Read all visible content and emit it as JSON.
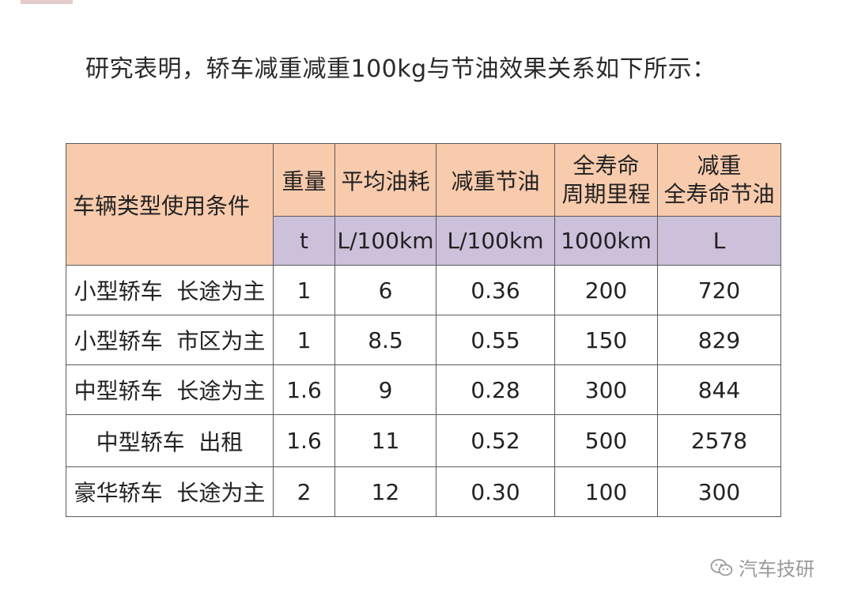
{
  "heading": "研究表明，轿车减重减重100kg与节油效果关系如下所示：",
  "table": {
    "headers": {
      "type": "车辆类型使用条件",
      "weight": "重量",
      "avg_fuel": "平均油耗",
      "saving": "减重节油",
      "mileage_line1": "全寿命",
      "mileage_line2": "周期里程",
      "lifetime_line1": "减重",
      "lifetime_line2": "全寿命节油"
    },
    "units": {
      "weight": "t",
      "avg_fuel": "L/100km",
      "saving": "L/100km",
      "mileage": "1000km",
      "lifetime": "L"
    },
    "rows": [
      {
        "type": "小型轿车  长途为主",
        "weight": "1",
        "avg_fuel": "6",
        "saving": "0.36",
        "mileage": "200",
        "lifetime": "720"
      },
      {
        "type": "小型轿车  市区为主",
        "weight": "1",
        "avg_fuel": "8.5",
        "saving": "0.55",
        "mileage": "150",
        "lifetime": "829"
      },
      {
        "type": "中型轿车  长途为主",
        "weight": "1.6",
        "avg_fuel": "9",
        "saving": "0.28",
        "mileage": "300",
        "lifetime": "844"
      },
      {
        "type": "中型轿车  出租",
        "weight": "1.6",
        "avg_fuel": "11",
        "saving": "0.52",
        "mileage": "500",
        "lifetime": "2578"
      },
      {
        "type": "豪华轿车  长途为主",
        "weight": "2",
        "avg_fuel": "12",
        "saving": "0.30",
        "mileage": "100",
        "lifetime": "300"
      }
    ]
  },
  "watermark": "汽车技研",
  "colors": {
    "header_bg": "#f8cbad",
    "unit_bg": "#ccc0da"
  }
}
